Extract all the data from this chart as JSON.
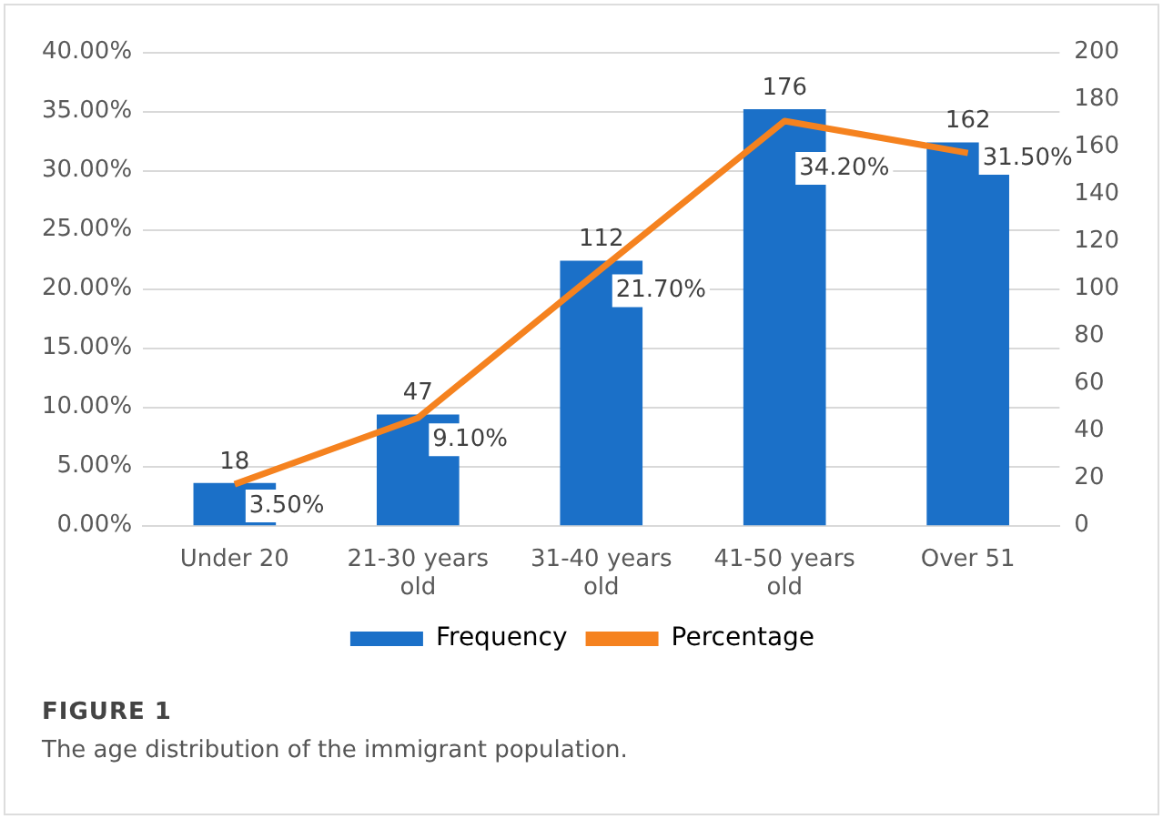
{
  "chart_data": {
    "type": "bar",
    "title": "FIGURE 1",
    "subtitle": "The age distribution of the immigrant population.",
    "categories": [
      "Under 20",
      "21-30 years old",
      "31-40 years old",
      "41-50 years old",
      "Over 51"
    ],
    "series": [
      {
        "name": "Frequency",
        "axis": "y2",
        "color": "#1b70c8",
        "values": [
          18,
          47,
          112,
          176,
          162
        ],
        "value_labels": [
          "18",
          "47",
          "112",
          "176",
          "162"
        ]
      },
      {
        "name": "Percentage",
        "type": "line",
        "axis": "y",
        "color": "#f5821f",
        "values": [
          3.5,
          9.1,
          21.7,
          34.2,
          31.5
        ],
        "value_labels": [
          "3.50%",
          "9.10%",
          "21.70%",
          "34.20%",
          "31.50%"
        ]
      }
    ],
    "ylim": [
      0,
      40
    ],
    "yticks": [
      {
        "value": 0,
        "label": "0.00%"
      },
      {
        "value": 5,
        "label": "5.00%"
      },
      {
        "value": 10,
        "label": "10.00%"
      },
      {
        "value": 15,
        "label": "15.00%"
      },
      {
        "value": 20,
        "label": "20.00%"
      },
      {
        "value": 25,
        "label": "25.00%"
      },
      {
        "value": 30,
        "label": "30.00%"
      },
      {
        "value": 35,
        "label": "35.00%"
      },
      {
        "value": 40,
        "label": "40.00%"
      }
    ],
    "y2lim": [
      0,
      200
    ],
    "y2ticks": [
      0,
      20,
      40,
      60,
      80,
      100,
      120,
      140,
      160,
      180,
      200
    ],
    "grid": "y",
    "legend": "bottom",
    "marker": "none",
    "line_style": "solid"
  }
}
